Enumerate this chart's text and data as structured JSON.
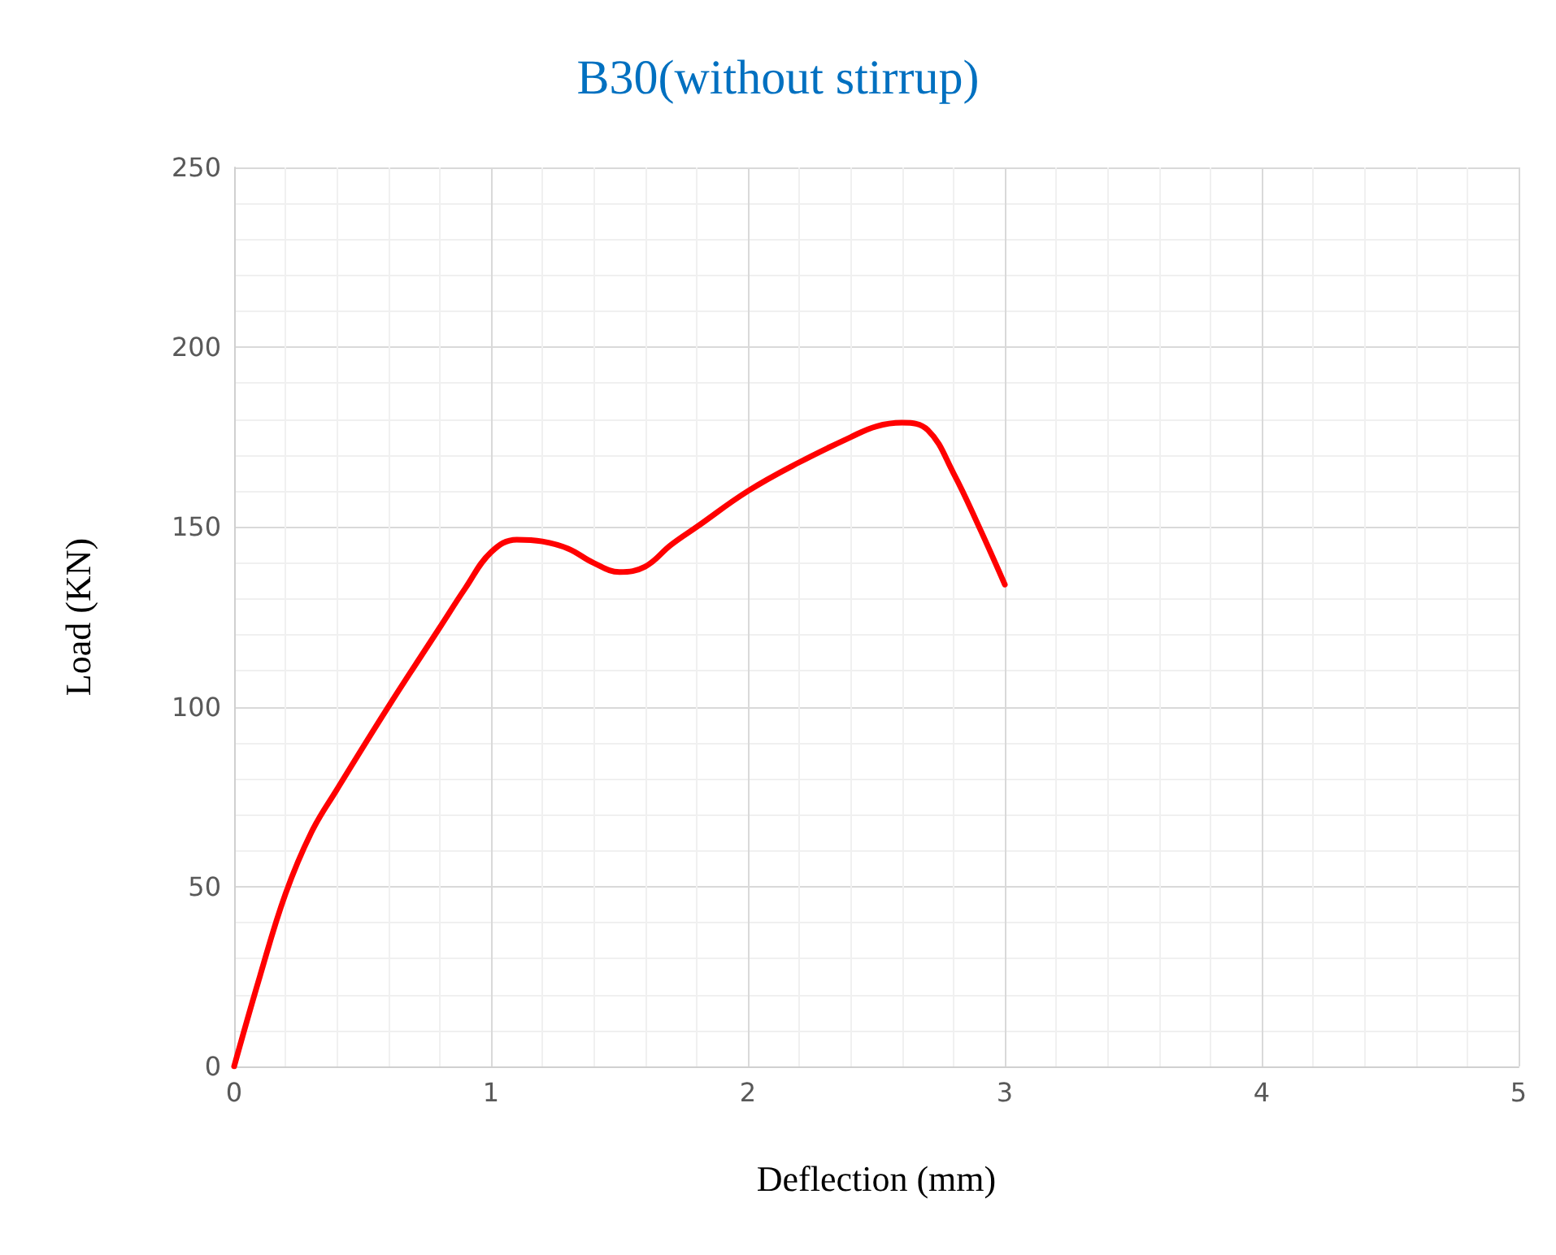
{
  "chart_data": {
    "type": "line",
    "title": "B30(without stirrup)",
    "xlabel": "Deflection (mm)",
    "ylabel": "Load (KN)",
    "x": [
      0,
      0.1,
      0.2,
      0.3,
      0.4,
      0.6,
      0.8,
      0.9,
      1.0,
      1.1,
      1.2,
      1.3,
      1.4,
      1.5,
      1.6,
      1.7,
      1.8,
      2.0,
      2.2,
      2.4,
      2.5,
      2.6,
      2.7,
      2.8,
      2.9,
      3.0
    ],
    "series": [
      {
        "color": "#ff0000",
        "values": [
          0,
          25,
          48,
          65,
          77,
          100,
          122,
          133,
          143,
          146.5,
          146,
          144,
          140,
          137.5,
          139,
          145,
          150,
          160,
          168,
          175,
          178,
          179,
          177,
          165,
          150,
          134
        ]
      }
    ],
    "xlim": [
      0,
      5
    ],
    "xticks": [
      0,
      1,
      2,
      3,
      4,
      5
    ],
    "ylim": [
      0,
      250
    ],
    "yticks": [
      0,
      50,
      100,
      150,
      200,
      250
    ],
    "grid": true,
    "marker": "none",
    "line_style": "solid"
  }
}
